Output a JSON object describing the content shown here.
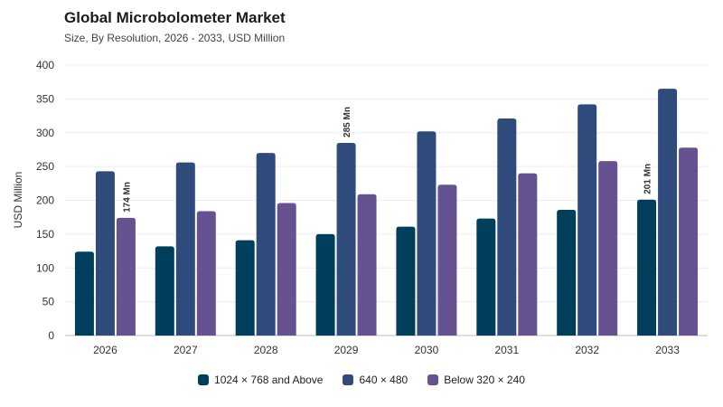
{
  "chart_data": {
    "type": "bar",
    "title": "Global Microbolometer Market",
    "subtitle": "Size, By Resolution, 2026 - 2033, USD Million",
    "ylabel": "USD Million",
    "xlabel": "",
    "ylim": [
      0,
      400
    ],
    "yticks": [
      0,
      50,
      100,
      150,
      200,
      250,
      300,
      350,
      400
    ],
    "grid": true,
    "legend_position": "bottom",
    "categories": [
      "2026",
      "2027",
      "2028",
      "2029",
      "2030",
      "2031",
      "2032",
      "2033"
    ],
    "series": [
      {
        "name": "1024 × 768 and Above",
        "color": "#003f5c",
        "values": [
          124,
          132,
          141,
          150,
          161,
          173,
          186,
          201
        ]
      },
      {
        "name": "640 × 480",
        "color": "#2f4b7c",
        "values": [
          243,
          256,
          270,
          285,
          302,
          321,
          342,
          365
        ]
      },
      {
        "name": "Below 320 × 240",
        "color": "#665191",
        "values": [
          174,
          184,
          196,
          209,
          223,
          240,
          258,
          278
        ]
      }
    ],
    "annotations": [
      {
        "category": "2026",
        "series": 2,
        "text": "174 Mn"
      },
      {
        "category": "2029",
        "series": 1,
        "text": "285 Mn"
      },
      {
        "category": "2033",
        "series": 0,
        "text": "201 Mn"
      }
    ]
  }
}
